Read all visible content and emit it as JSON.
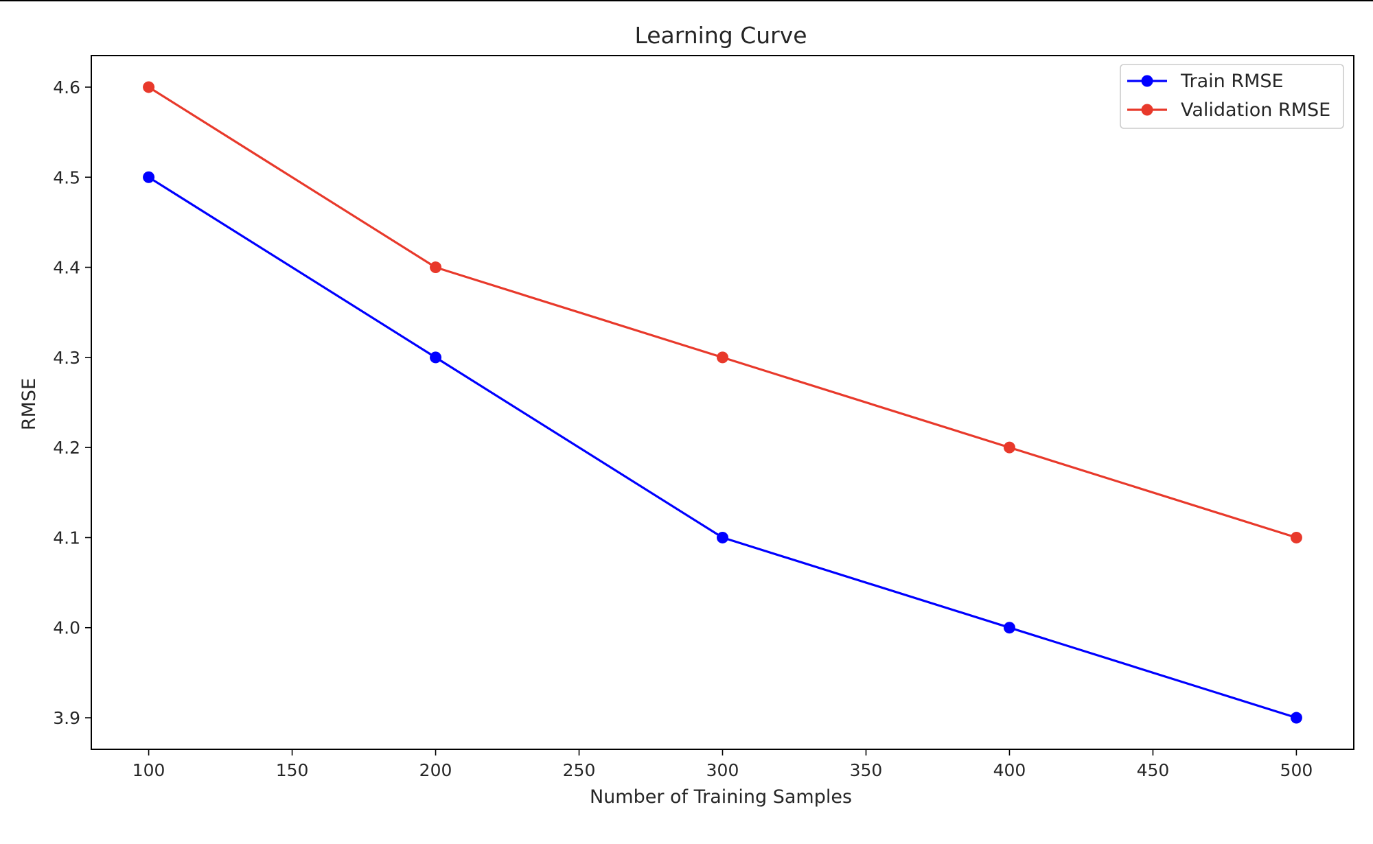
{
  "chart_data": {
    "type": "line",
    "title": "Learning Curve",
    "xlabel": "Number of Training Samples",
    "ylabel": "RMSE",
    "x": [
      100,
      200,
      300,
      400,
      500
    ],
    "xlim": [
      80,
      520
    ],
    "ylim": [
      3.865,
      4.635
    ],
    "xticks": [
      100,
      150,
      200,
      250,
      300,
      350,
      400,
      450,
      500
    ],
    "xtick_labels": [
      "100",
      "150",
      "200",
      "250",
      "300",
      "350",
      "400",
      "450",
      "500"
    ],
    "yticks": [
      3.9,
      4.0,
      4.1,
      4.2,
      4.3,
      4.4,
      4.5,
      4.6
    ],
    "ytick_labels": [
      "3.9",
      "4.0",
      "4.1",
      "4.2",
      "4.3",
      "4.4",
      "4.5",
      "4.6"
    ],
    "grid": false,
    "legend_position": "top-right",
    "series": [
      {
        "name": "Train RMSE",
        "color": "#0000ff",
        "marker": "circle",
        "values": [
          4.5,
          4.3,
          4.1,
          4.0,
          3.9
        ]
      },
      {
        "name": "Validation RMSE",
        "color": "#e8392b",
        "marker": "circle",
        "values": [
          4.6,
          4.4,
          4.3,
          4.2,
          4.1
        ]
      }
    ]
  }
}
